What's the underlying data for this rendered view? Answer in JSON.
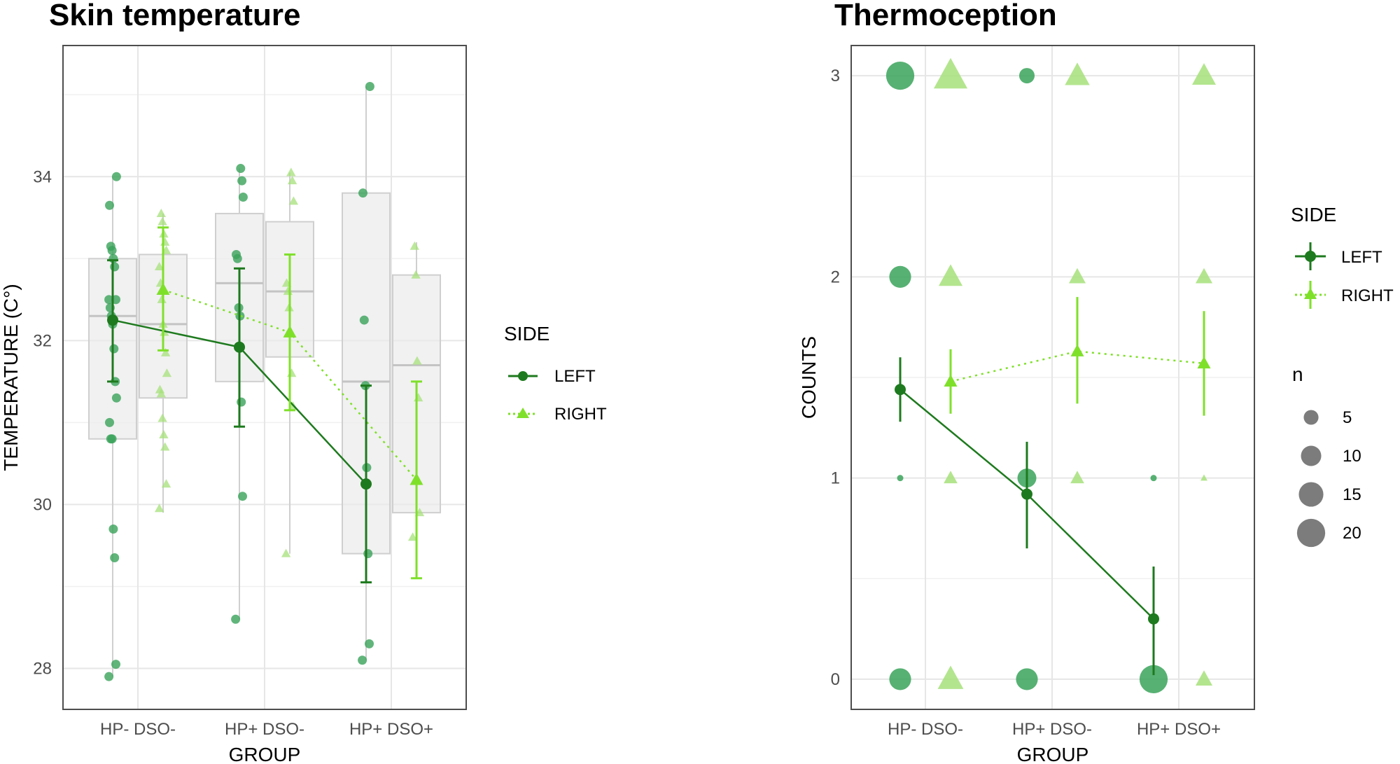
{
  "colors": {
    "left": "#1e7a1e",
    "right": "#7fe02a",
    "left_point": "#3aa35a",
    "right_point": "#a6e07a",
    "box_fill": "#ebebeb",
    "box_stroke": "#cfcfcf",
    "grid": "#e6e6e6",
    "panel_border": "#4d4d4d"
  },
  "chart_data": [
    {
      "type": "box",
      "title": "Skin temperature",
      "xlabel": "GROUP",
      "ylabel": "TEMPERATURE (C°)",
      "categories": [
        "HP- DSO-",
        "HP+ DSO-",
        "HP+ DSO+"
      ],
      "ylim": [
        27.5,
        35.6
      ],
      "yticks": [
        28,
        30,
        32,
        34
      ],
      "grid": true,
      "legend": {
        "title": "SIDE",
        "entries": [
          "LEFT",
          "RIGHT"
        ],
        "position": "right"
      },
      "series": [
        {
          "name": "LEFT",
          "boxes": [
            {
              "min": 27.9,
              "q1": 30.8,
              "median": 32.3,
              "q3": 33.0,
              "max": 34.0
            },
            {
              "min": 28.6,
              "q1": 31.5,
              "median": 32.7,
              "q3": 33.55,
              "max": 34.1
            },
            {
              "min": 28.1,
              "q1": 29.4,
              "median": 31.5,
              "q3": 33.8,
              "max": 35.1
            }
          ],
          "mean": [
            32.25,
            31.92,
            30.25
          ],
          "ci_low": [
            31.5,
            30.95,
            29.05
          ],
          "ci_high": [
            32.98,
            32.88,
            31.45
          ],
          "points": [
            [
              27.9,
              28.05,
              29.35,
              29.7,
              30.8,
              30.8,
              31.0,
              31.3,
              31.5,
              31.9,
              32.2,
              32.3,
              32.4,
              32.5,
              32.5,
              32.9,
              33.0,
              33.1,
              33.15,
              33.65,
              34.0
            ],
            [
              28.6,
              30.1,
              31.25,
              32.3,
              32.4,
              33.0,
              33.05,
              33.75,
              33.95,
              34.1
            ],
            [
              28.1,
              28.3,
              29.4,
              30.45,
              31.45,
              32.25,
              33.8,
              35.1
            ]
          ]
        },
        {
          "name": "RIGHT",
          "boxes": [
            {
              "min": 29.9,
              "q1": 31.3,
              "median": 32.2,
              "q3": 33.05,
              "max": 33.55
            },
            {
              "min": 29.4,
              "q1": 31.8,
              "median": 32.6,
              "q3": 33.45,
              "max": 34.05
            },
            {
              "min": 29.6,
              "q1": 29.9,
              "median": 31.7,
              "q3": 32.8,
              "max": 33.2
            }
          ],
          "mean": [
            32.62,
            32.1,
            30.3
          ],
          "ci_low": [
            31.88,
            31.15,
            29.1
          ],
          "ci_high": [
            33.38,
            33.05,
            31.5
          ],
          "points": [
            [
              29.95,
              30.25,
              30.7,
              30.85,
              31.05,
              31.35,
              31.4,
              31.6,
              31.85,
              32.1,
              32.2,
              32.5,
              32.7,
              32.9,
              33.1,
              33.2,
              33.3,
              33.45,
              33.55
            ],
            [
              29.4,
              31.2,
              31.6,
              32.1,
              32.4,
              32.6,
              32.7,
              33.7,
              33.95,
              34.05
            ],
            [
              29.6,
              29.9,
              31.3,
              31.75,
              32.8,
              33.15
            ]
          ]
        }
      ]
    },
    {
      "type": "scatter",
      "title": "Thermoception",
      "xlabel": "GROUP",
      "ylabel": "COUNTS",
      "categories": [
        "HP- DSO-",
        "HP+ DSO-",
        "HP+ DSO+"
      ],
      "ylim": [
        -0.15,
        3.15
      ],
      "yticks": [
        0,
        1,
        2,
        3
      ],
      "grid": true,
      "legend": {
        "title": "SIDE",
        "entries": [
          "LEFT",
          "RIGHT"
        ],
        "position": "right"
      },
      "size_legend": {
        "title": "n",
        "values": [
          5,
          10,
          15,
          20
        ]
      },
      "series": [
        {
          "name": "LEFT",
          "mean": [
            1.44,
            0.92,
            0.3
          ],
          "ci_low": [
            1.28,
            0.65,
            0.02
          ],
          "ci_high": [
            1.6,
            1.18,
            0.56
          ],
          "counts": [
            {
              "y": 0,
              "n": [
                12,
                12,
                20
              ]
            },
            {
              "y": 1,
              "n": [
                1,
                9,
                1
              ]
            },
            {
              "y": 2,
              "n": [
                12,
                0,
                0
              ]
            },
            {
              "y": 3,
              "n": [
                20,
                6,
                0
              ]
            }
          ]
        },
        {
          "name": "RIGHT",
          "mean": [
            1.48,
            1.63,
            1.57
          ],
          "ci_low": [
            1.32,
            1.37,
            1.31
          ],
          "ci_high": [
            1.64,
            1.9,
            1.83
          ],
          "counts": [
            {
              "y": 0,
              "n": [
                14,
                0,
                6
              ]
            },
            {
              "y": 1,
              "n": [
                4,
                4,
                1
              ]
            },
            {
              "y": 2,
              "n": [
                12,
                6,
                6
              ]
            },
            {
              "y": 3,
              "n": [
                24,
                13,
                12
              ]
            }
          ]
        }
      ]
    }
  ]
}
